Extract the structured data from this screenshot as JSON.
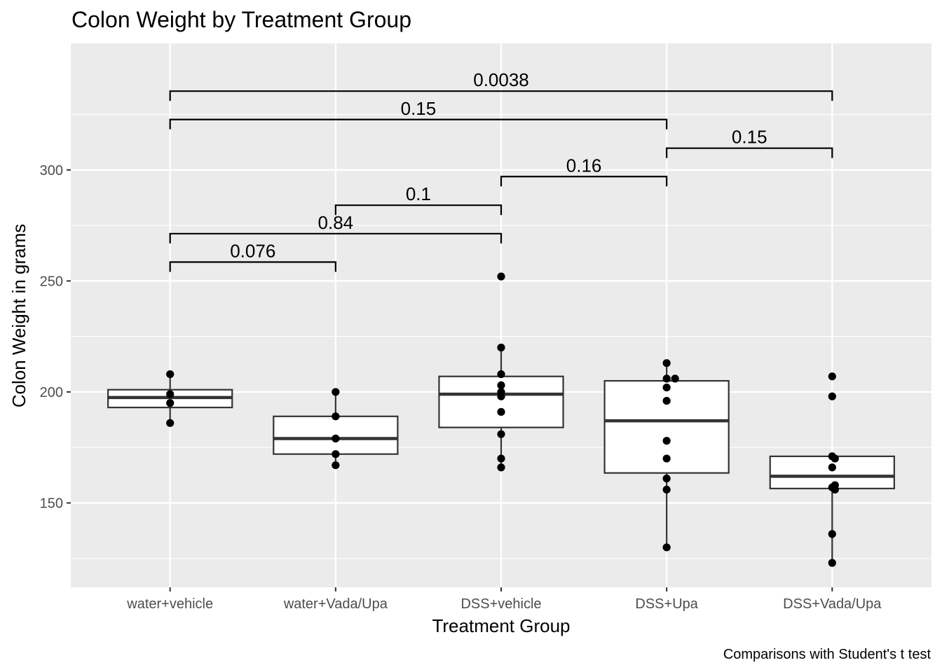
{
  "chart_data": {
    "type": "box",
    "title": "Colon Weight by Treatment Group",
    "xlabel": "Treatment Group",
    "ylabel": "Colon Weight in grams",
    "caption": "Comparisons with Student's t test",
    "ylim": [
      112,
      357
    ],
    "yticks": [
      150,
      200,
      250,
      300
    ],
    "grid": true,
    "categories": [
      "water+vehicle",
      "water+Vada/Upa",
      "DSS+vehicle",
      "DSS+Upa",
      "DSS+Vada/Upa"
    ],
    "boxes": [
      {
        "q1": 193,
        "median": 197.5,
        "q3": 201,
        "whisker_low": 186,
        "whisker_high": 208
      },
      {
        "q1": 172,
        "median": 179,
        "q3": 189,
        "whisker_low": 167,
        "whisker_high": 200
      },
      {
        "q1": 184,
        "median": 199,
        "q3": 207,
        "whisker_low": 166,
        "whisker_high": 220
      },
      {
        "q1": 163.5,
        "median": 187,
        "q3": 205,
        "whisker_low": 130,
        "whisker_high": 213
      },
      {
        "q1": 156.5,
        "median": 162,
        "q3": 171,
        "whisker_low": 123,
        "whisker_high": 171
      }
    ],
    "points": [
      [
        208,
        199,
        195,
        186
      ],
      [
        200,
        189,
        179,
        172,
        167
      ],
      [
        252,
        220,
        208,
        203,
        200,
        198,
        191,
        181,
        170,
        166
      ],
      [
        213,
        206,
        206,
        202,
        196,
        178,
        170,
        161,
        156,
        130
      ],
      [
        207,
        198,
        171,
        170,
        166,
        158,
        157,
        156,
        136,
        123
      ]
    ],
    "comparisons": [
      {
        "from": 0,
        "to": 1,
        "y": 258.5,
        "label": "0.076"
      },
      {
        "from": 0,
        "to": 2,
        "y": 271.3,
        "label": "0.84"
      },
      {
        "from": 1,
        "to": 2,
        "y": 284.1,
        "label": "0.1"
      },
      {
        "from": 2,
        "to": 3,
        "y": 297.0,
        "label": "0.16"
      },
      {
        "from": 3,
        "to": 4,
        "y": 309.8,
        "label": "0.15"
      },
      {
        "from": 0,
        "to": 3,
        "y": 322.7,
        "label": "0.15"
      },
      {
        "from": 0,
        "to": 4,
        "y": 335.5,
        "label": "0.0038"
      }
    ]
  }
}
